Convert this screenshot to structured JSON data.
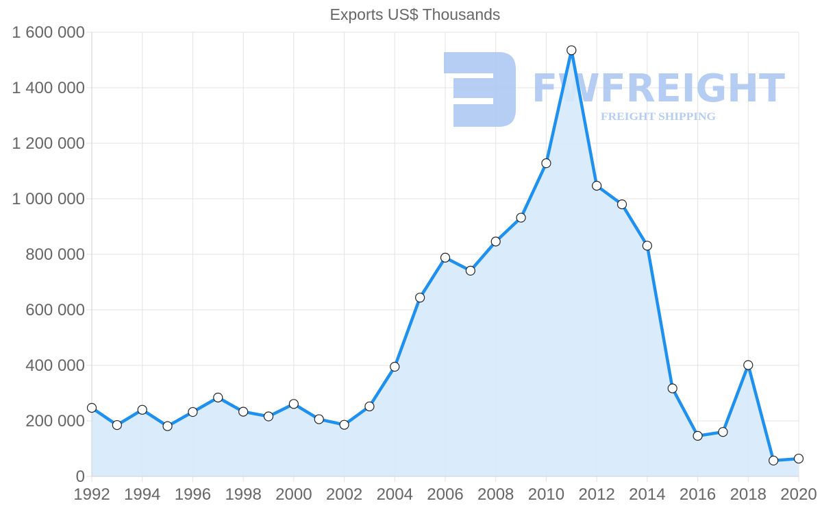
{
  "chart_data": {
    "type": "line",
    "title": "Exports US$ Thousands",
    "xlabel": "",
    "ylabel": "",
    "x": [
      1992,
      1993,
      1994,
      1995,
      1996,
      1997,
      1998,
      1999,
      2000,
      2001,
      2002,
      2003,
      2004,
      2005,
      2006,
      2007,
      2008,
      2009,
      2010,
      2011,
      2012,
      2013,
      2014,
      2015,
      2016,
      2017,
      2018,
      2019,
      2020
    ],
    "series": [
      {
        "name": "Exports US$ Thousands",
        "values": [
          247000,
          185000,
          240000,
          181000,
          232000,
          284000,
          233000,
          216000,
          261000,
          206000,
          186000,
          252000,
          395000,
          644000,
          788000,
          741000,
          846000,
          932000,
          1128000,
          1535000,
          1047000,
          980000,
          831000,
          317000,
          146000,
          160000,
          401000,
          57000,
          64000
        ],
        "color": "#1e90f0",
        "fill": "#d6eafc"
      }
    ],
    "x_tick_labels": [
      "1992",
      "1994",
      "1996",
      "1998",
      "2000",
      "2002",
      "2004",
      "2006",
      "2008",
      "2010",
      "2012",
      "2014",
      "2016",
      "2018",
      "2020"
    ],
    "y_tick_labels": [
      "0",
      "200 000",
      "400 000",
      "600 000",
      "800 000",
      "1 000 000",
      "1 200 000",
      "1 400 000",
      "1 600 000"
    ],
    "ylim": [
      0,
      1600000
    ],
    "xlim": [
      1992,
      2020
    ],
    "grid": true,
    "legend": "none",
    "area_fill": true
  },
  "watermark": {
    "brand": "FWFREIGHT",
    "tagline": "FREIGHT SHIPPING",
    "color": "#a9c5f1"
  }
}
